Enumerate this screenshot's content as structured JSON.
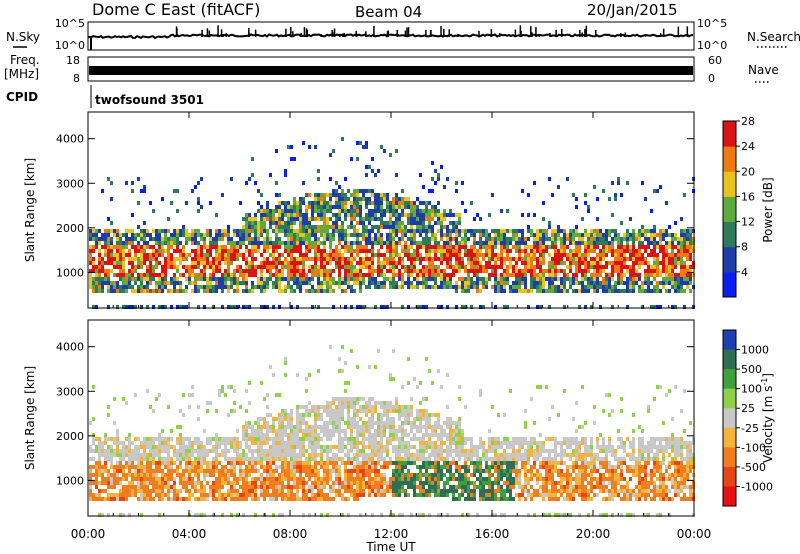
{
  "header": {
    "station": "Dome C East (fitACF)",
    "beam": "Beam 04",
    "date": "20/Jan/2015"
  },
  "noise_panel": {
    "left_label": "N.Sky",
    "right_label": "N.Search",
    "left_ticks": [
      "10^5",
      "10^0"
    ],
    "right_ticks": [
      "10^5",
      "10^0"
    ]
  },
  "freq_panel": {
    "left_label_1": "Freq.",
    "left_label_2": "[MHz]",
    "right_label": "Nave",
    "left_ticks": [
      "18",
      "8"
    ],
    "right_ticks": [
      "60",
      "0"
    ]
  },
  "cpid_panel": {
    "label": "CPID",
    "value": "twofsound 3501"
  },
  "chart_data": [
    {
      "type": "heatmap",
      "name": "power",
      "ylabel": "Slant Range [km]",
      "xlabel": "",
      "ylim": [
        200,
        4600
      ],
      "y_ticks": [
        "1000",
        "2000",
        "3000",
        "4000"
      ],
      "colorbar": {
        "label": "Power [dB]",
        "ticks": [
          "4",
          "8",
          "12",
          "16",
          "20",
          "24",
          "28"
        ],
        "colors": [
          "#0a1ef0",
          "#1f3da8",
          "#2f7a5a",
          "#5faa3c",
          "#e8c21e",
          "#f07a12",
          "#d91414"
        ]
      }
    },
    {
      "type": "heatmap",
      "name": "velocity",
      "ylabel": "Slant Range [km]",
      "xlabel": "Time UT",
      "ylim": [
        200,
        4600
      ],
      "y_ticks": [
        "1000",
        "2000",
        "3000",
        "4000"
      ],
      "x_ticks": [
        "00:00",
        "04:00",
        "08:00",
        "12:00",
        "16:00",
        "20:00",
        "00:00"
      ],
      "colorbar": {
        "label": "Velocity [m s",
        "label_sup": "-1",
        "label_end": "]",
        "ticks": [
          "1000",
          "500",
          "100",
          "25",
          "-25",
          "-100",
          "-500",
          "-1000"
        ],
        "colors": [
          "#1f3fb0",
          "#2f6e56",
          "#3fa03c",
          "#8fd14a",
          "#c8c8c8",
          "#f4b43c",
          "#f07e1e",
          "#e64614",
          "#e81010"
        ]
      }
    }
  ]
}
